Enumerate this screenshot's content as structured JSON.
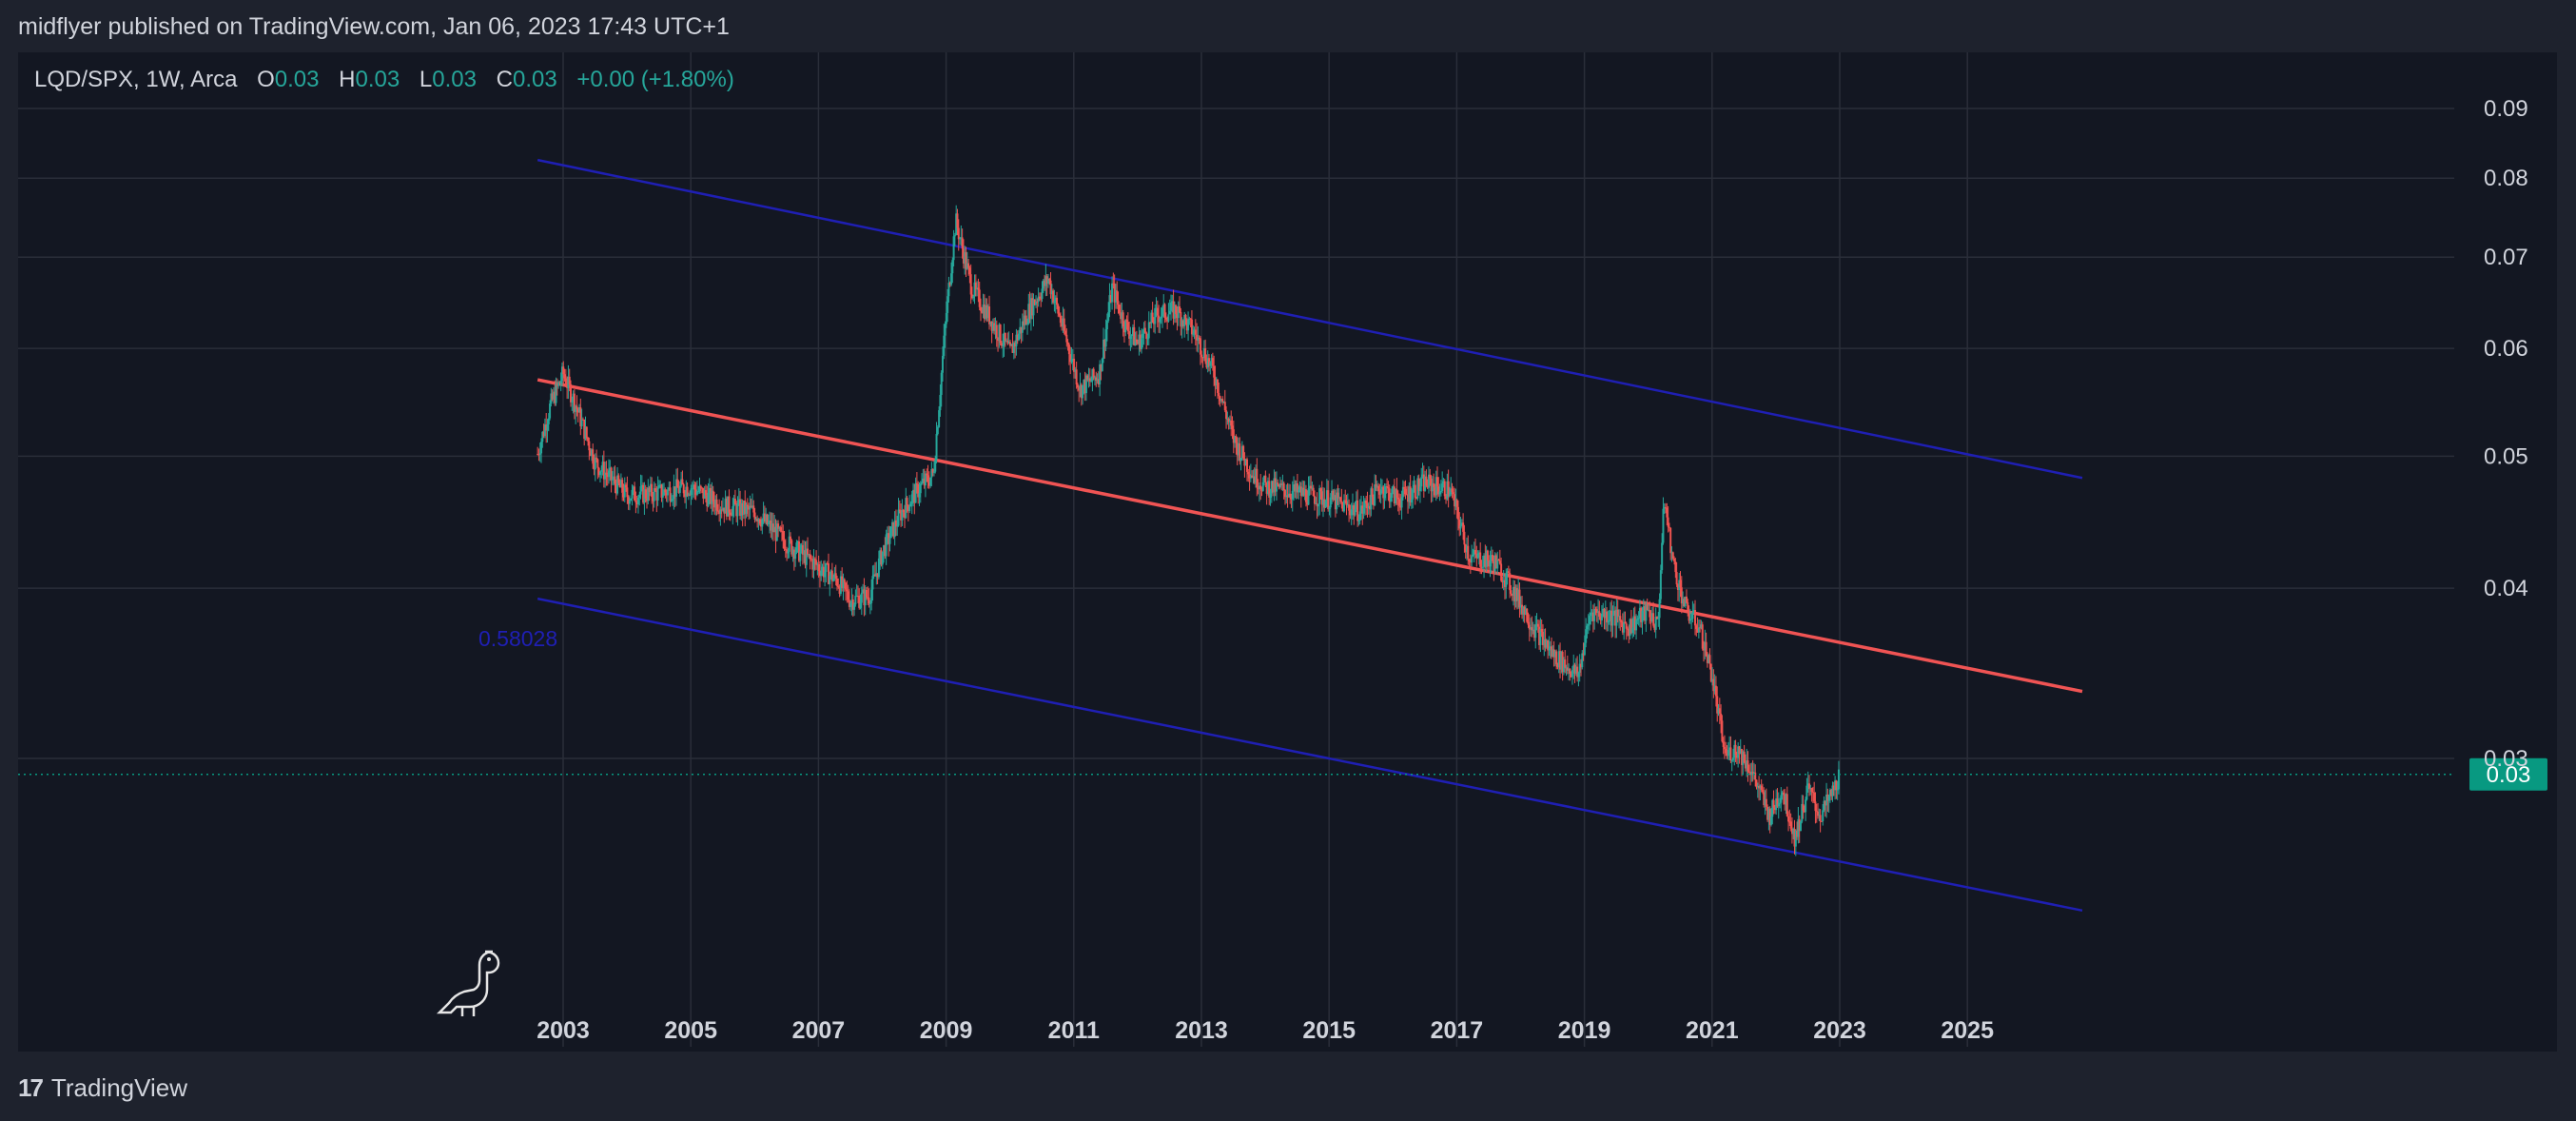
{
  "header": {
    "published_text": "midflyer published on TradingView.com, Jan 06, 2023 17:43 UTC+1"
  },
  "legend": {
    "symbol": "LQD/SPX, 1W, Arca",
    "o_label": "O",
    "o_value": "0.03",
    "h_label": "H",
    "h_value": "0.03",
    "l_label": "L",
    "l_value": "0.03",
    "c_label": "C",
    "c_value": "0.03",
    "change": "+0.00 (+1.80%)"
  },
  "footer": {
    "brand": "TradingView",
    "logo_glyph": "17"
  },
  "colors": {
    "up": "#26a69a",
    "down": "#ef5350",
    "channel": "#1f1fb4",
    "midline": "#f05454",
    "price_label_bg": "#089981"
  },
  "icons": [
    "dinosaur-icon",
    "tradingview-logo-icon"
  ],
  "chart_data": {
    "type": "candlestick",
    "scale": "log",
    "x_range": [
      2001.0,
      2027.3
    ],
    "ylim": [
      0.02,
      0.095
    ],
    "x_ticks": [
      "2003",
      "2005",
      "2007",
      "2009",
      "2011",
      "2013",
      "2015",
      "2017",
      "2019",
      "2021",
      "2023",
      "2025"
    ],
    "y_ticks": [
      "0.09",
      "0.08",
      "0.07",
      "0.06",
      "0.05",
      "0.04",
      "0.03"
    ],
    "y_tick_values": [
      0.09,
      0.08,
      0.07,
      0.06,
      0.05,
      0.04,
      0.03
    ],
    "last_price_label": "0.03",
    "last_price": 0.0292,
    "channel_label": "0.58028",
    "trend_lines": [
      {
        "role": "upper",
        "from": [
          2002.6,
          0.0825
        ],
        "to": [
          2026.8,
          0.0482
        ]
      },
      {
        "role": "mid",
        "from": [
          2002.6,
          0.0569
        ],
        "to": [
          2026.8,
          0.0336
        ]
      },
      {
        "role": "lower",
        "from": [
          2002.6,
          0.0393
        ],
        "to": [
          2026.8,
          0.0232
        ]
      }
    ],
    "series": [
      {
        "name": "LQD/SPX",
        "x": [
          2002.6,
          2002.8,
          2003.0,
          2003.2,
          2003.5,
          2004.0,
          2004.5,
          2005.0,
          2005.5,
          2006.0,
          2006.5,
          2007.0,
          2007.3,
          2007.5,
          2007.8,
          2008.0,
          2008.3,
          2008.6,
          2008.8,
          2009.0,
          2009.15,
          2009.4,
          2009.7,
          2010.0,
          2010.3,
          2010.6,
          2010.9,
          2011.1,
          2011.4,
          2011.6,
          2011.8,
          2012.0,
          2012.3,
          2012.6,
          2012.9,
          2013.2,
          2013.5,
          2013.8,
          2014.0,
          2014.5,
          2015.0,
          2015.5,
          2015.8,
          2016.1,
          2016.5,
          2016.9,
          2017.2,
          2017.6,
          2017.9,
          2018.2,
          2018.5,
          2018.9,
          2019.1,
          2019.4,
          2019.7,
          2020.0,
          2020.15,
          2020.25,
          2020.4,
          2020.6,
          2020.8,
          2021.0,
          2021.2,
          2021.4,
          2021.6,
          2021.9,
          2022.1,
          2022.3,
          2022.5,
          2022.7,
          2022.9,
          2023.0
        ],
        "y": [
          0.0502,
          0.0545,
          0.0575,
          0.0545,
          0.0495,
          0.0468,
          0.047,
          0.0475,
          0.046,
          0.0455,
          0.0432,
          0.0415,
          0.0405,
          0.0392,
          0.0395,
          0.0425,
          0.0455,
          0.0475,
          0.0485,
          0.0635,
          0.0745,
          0.0665,
          0.063,
          0.0595,
          0.064,
          0.0675,
          0.0605,
          0.056,
          0.0575,
          0.0665,
          0.0625,
          0.0605,
          0.0635,
          0.064,
          0.0615,
          0.0575,
          0.0515,
          0.0485,
          0.0475,
          0.047,
          0.0465,
          0.0455,
          0.0475,
          0.0465,
          0.0478,
          0.0472,
          0.0422,
          0.0418,
          0.0398,
          0.0375,
          0.0358,
          0.0345,
          0.0385,
          0.0382,
          0.0375,
          0.0385,
          0.0375,
          0.0465,
          0.0415,
          0.0385,
          0.0375,
          0.0345,
          0.0302,
          0.0305,
          0.0295,
          0.0272,
          0.0285,
          0.0262,
          0.0285,
          0.0272,
          0.0284,
          0.0292
        ]
      }
    ]
  }
}
